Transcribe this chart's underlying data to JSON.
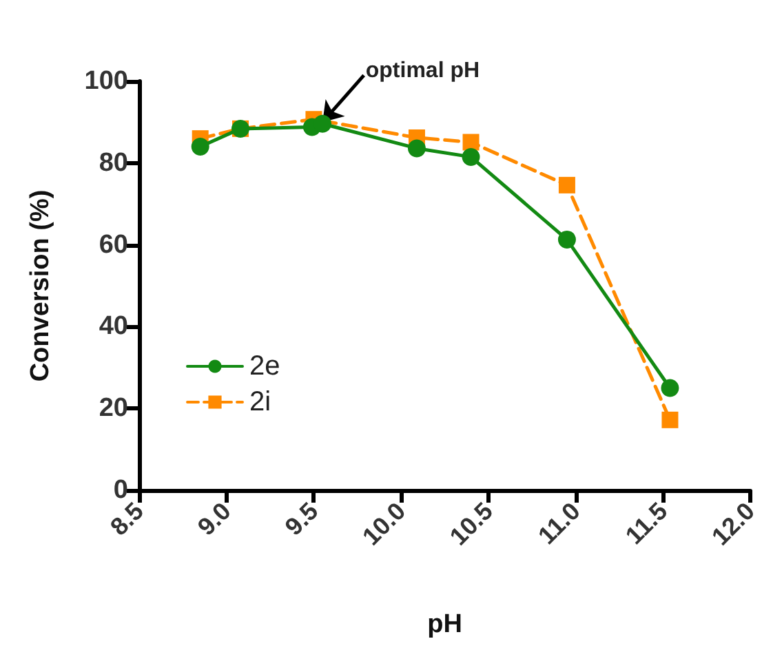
{
  "chart_data": {
    "type": "line",
    "xlabel": "pH",
    "ylabel": "Conversion (%)",
    "xlim": [
      8.5,
      12.0
    ],
    "xticks": [
      {
        "value": 8.5,
        "label": "8.5"
      },
      {
        "value": 9,
        "label": "9.0"
      },
      {
        "value": 9.5,
        "label": "9.5"
      },
      {
        "value": 10,
        "label": "10.0"
      },
      {
        "value": 10.5,
        "label": "10.5"
      },
      {
        "value": 11,
        "label": "11.0"
      },
      {
        "value": 11.5,
        "label": "11.5"
      },
      {
        "value": 12,
        "label": "12.0"
      }
    ],
    "ylim": [
      0,
      100
    ],
    "yticks": [
      0,
      20,
      40,
      60,
      80,
      100
    ],
    "grid": false,
    "legend": "bottom left",
    "annotations": [
      {
        "text": "optimal pH",
        "x": 9.55,
        "y": 90
      }
    ],
    "series": [
      {
        "name": "2e",
        "color": "#138a13",
        "marker": "circle",
        "line_style": "solid",
        "x": [
          8.85,
          9.08,
          9.49,
          9.55,
          10.09,
          10.4,
          10.95,
          11.54
        ],
        "values": [
          84,
          88.4,
          88.8,
          89.6,
          83.6,
          81.5,
          61.3,
          25
        ]
      },
      {
        "name": "2i",
        "color": "#ff8a00",
        "marker": "square",
        "line_style": "dashed",
        "x": [
          8.85,
          9.08,
          9.5,
          10.09,
          10.4,
          10.95,
          11.54
        ],
        "values": [
          86,
          88.4,
          90.7,
          86.2,
          85.1,
          74.6,
          17.2
        ]
      }
    ]
  }
}
